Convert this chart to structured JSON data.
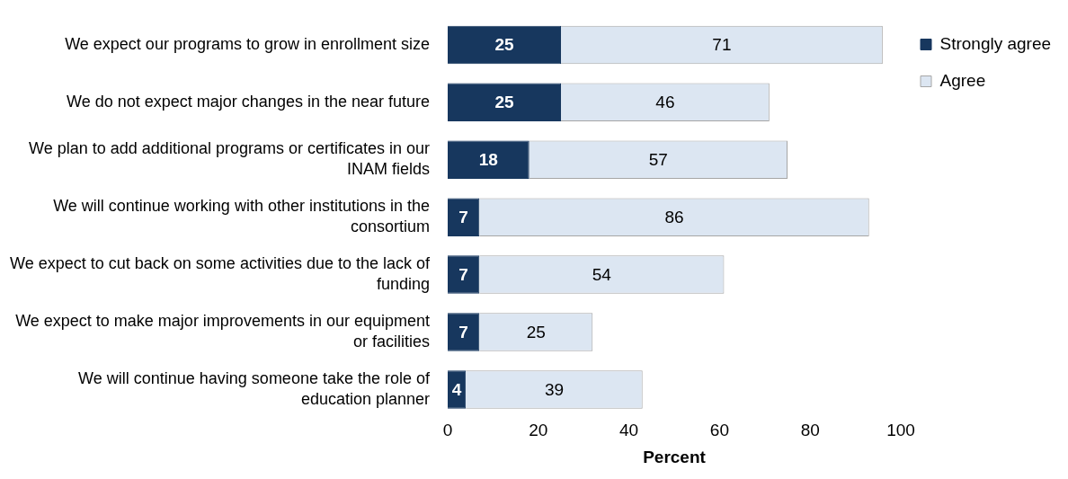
{
  "chart_data": {
    "type": "bar",
    "orientation": "horizontal",
    "stacked": true,
    "xlabel": "Percent",
    "categories": [
      "We expect our programs to grow in enrollment size",
      "We do not expect major changes in the near future",
      "We plan to add additional programs or certificates in our INAM fields",
      "We will continue working with other institutions in the consortium",
      "We expect to cut back on some activities due to the lack of funding",
      "We expect to make major improvements in our equipment or facilities",
      "We will continue having someone take the role of education planner"
    ],
    "series": [
      {
        "name": "Strongly agree",
        "color": "#17375e",
        "values": [
          25,
          25,
          18,
          7,
          7,
          7,
          4
        ]
      },
      {
        "name": "Agree",
        "color": "#dce6f2",
        "values": [
          71,
          46,
          57,
          86,
          54,
          25,
          39
        ]
      }
    ],
    "xlim": [
      0,
      100
    ],
    "xticks": [
      0,
      20,
      40,
      60,
      80,
      100
    ],
    "grid": false,
    "legend": "top right",
    "data_labels": true
  }
}
